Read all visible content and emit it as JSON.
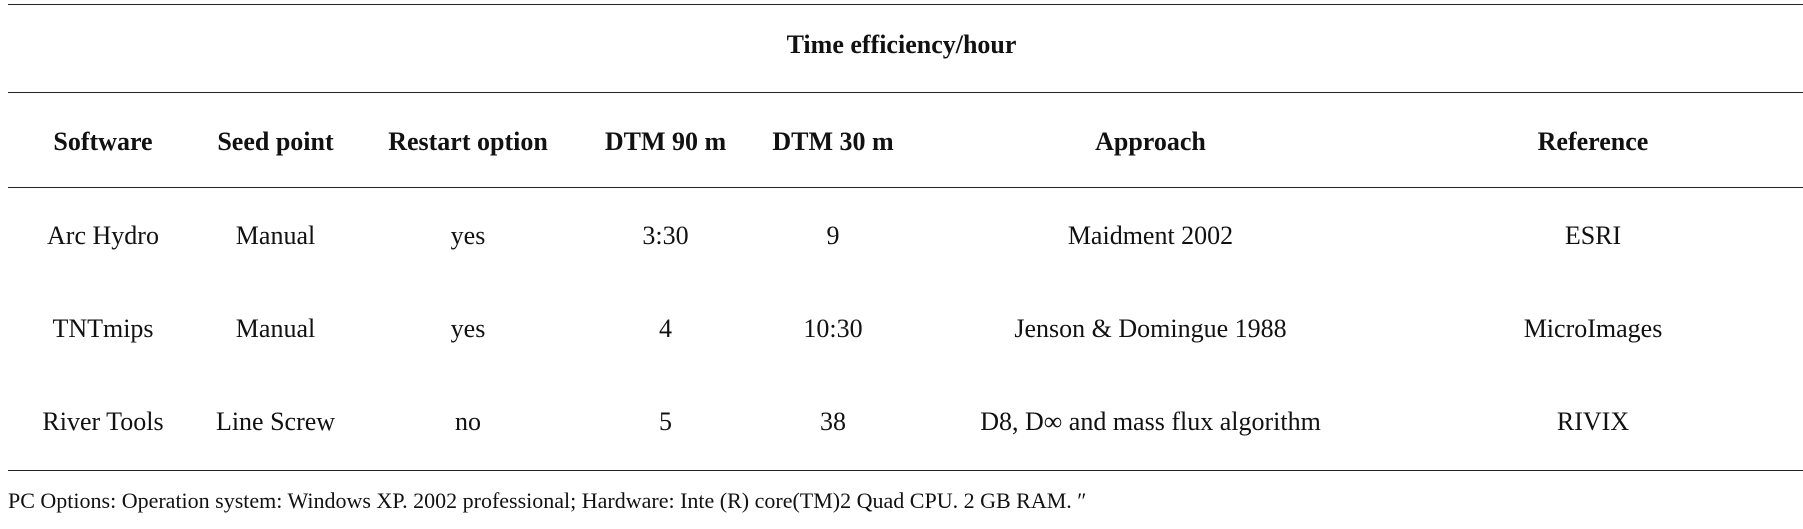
{
  "title": "Time efficiency/hour",
  "columns": [
    "Software",
    "Seed point",
    "Restart option",
    "DTM 90 m",
    "DTM 30 m",
    "Approach",
    "Reference"
  ],
  "rows": [
    [
      "Arc Hydro",
      "Manual",
      "yes",
      "3:30",
      "9",
      "Maidment 2002",
      "ESRI"
    ],
    [
      "TNTmips",
      "Manual",
      "yes",
      "4",
      "10:30",
      "Jenson & Domingue 1988",
      "MicroImages"
    ],
    [
      "River Tools",
      "Line Screw",
      "no",
      "5",
      "38",
      "D8, D∞ and mass flux algorithm",
      "RIVIX"
    ]
  ],
  "footnote": "PC Options: Operation system: Windows XP. 2002 professional; Hardware: Inte (R) core(TM)2 Quad CPU. 2 GB RAM. ″"
}
